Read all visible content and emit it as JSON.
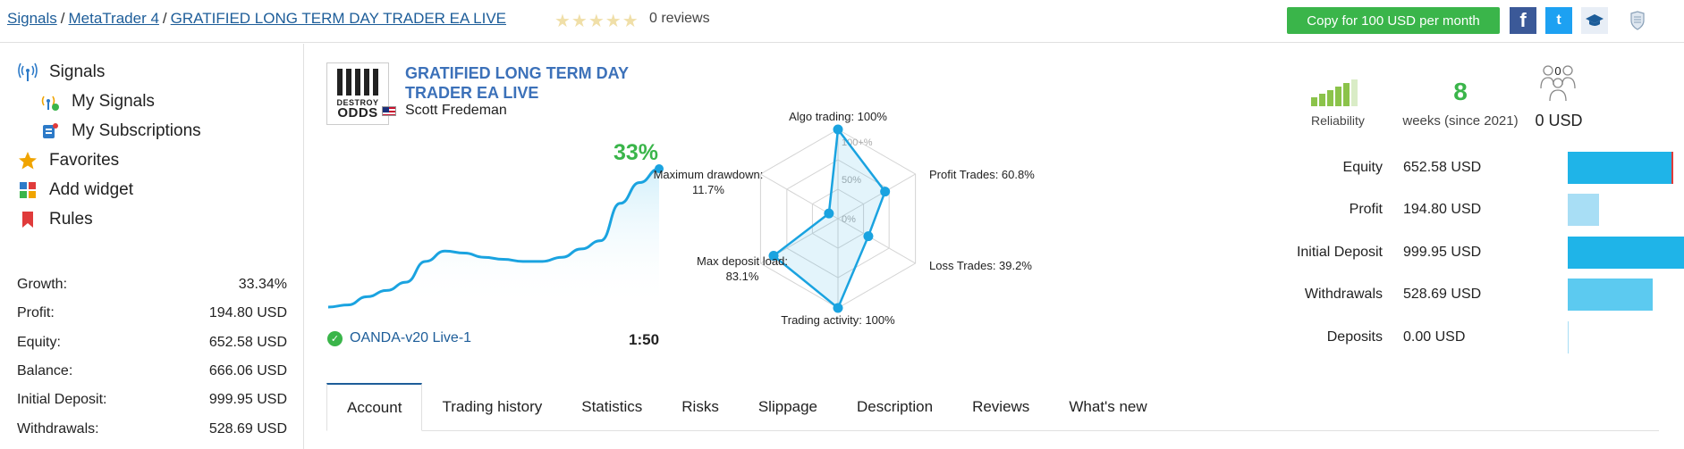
{
  "breadcrumb": {
    "items": [
      "Signals",
      "MetaTrader 4",
      "GRATIFIED LONG TERM DAY TRADER EA LIVE"
    ],
    "sep": "/"
  },
  "rating": {
    "stars": "★★★★★",
    "reviews": "0 reviews"
  },
  "header": {
    "copy_button": "Copy for 100 USD per month",
    "facebook_glyph": "f",
    "twitter_glyph": "t"
  },
  "sidebar": {
    "nav": [
      {
        "label": "Signals",
        "icon": "antenna-icon"
      },
      {
        "label": "My Signals",
        "icon": "my-signals-icon"
      },
      {
        "label": "My Subscriptions",
        "icon": "subscriptions-icon"
      },
      {
        "label": "Favorites",
        "icon": "star-icon"
      },
      {
        "label": "Add widget",
        "icon": "widget-icon"
      },
      {
        "label": "Rules",
        "icon": "bookmark-icon"
      }
    ],
    "stats": [
      {
        "label": "Growth:",
        "value": "33.34%"
      },
      {
        "label": "Profit:",
        "value": "194.80 USD"
      },
      {
        "label": "Equity:",
        "value": "652.58 USD"
      },
      {
        "label": "Balance:",
        "value": "666.06 USD"
      },
      {
        "label": "Initial Deposit:",
        "value": "999.95 USD"
      },
      {
        "label": "Withdrawals:",
        "value": "528.69 USD"
      }
    ]
  },
  "signal": {
    "logo_line1": "DESTROY",
    "logo_line2": "ODDS",
    "title": "GRATIFIED LONG TERM DAY TRADER EA LIVE",
    "author": "Scott Fredeman",
    "growth": "33%",
    "broker": "OANDA-v20 Live-1",
    "broker_check": "✓",
    "leverage": "1:50"
  },
  "radar": {
    "axes": [
      {
        "label": "Algo trading: 100%",
        "value": 100
      },
      {
        "label": "Profit Trades: 60.8%",
        "value": 60.8
      },
      {
        "label": "Loss Trades: 39.2%",
        "value": 39.2
      },
      {
        "label": "Trading activity: 100%",
        "value": 100
      },
      {
        "label": "Max deposit load:",
        "label2": "83.1%",
        "value": 83.1
      },
      {
        "label": "Maximum drawdown:",
        "label2": "11.7%",
        "value": 11.7
      }
    ],
    "rings": [
      "100+%",
      "50%",
      "0%"
    ],
    "color": "#1aa3e0"
  },
  "summary": {
    "reliability_label": "Reliability",
    "weeks": "8",
    "weeks_label": "weeks (since 2021)",
    "subscribers_count": "0",
    "subscribers_usd": "0 USD"
  },
  "equity_rows": [
    {
      "label": "Equity",
      "value": "652.58 USD",
      "fraction": 0.653,
      "color": "#1fb4e8",
      "marker": true
    },
    {
      "label": "Profit",
      "value": "194.80 USD",
      "fraction": 0.195,
      "color": "#a8def5",
      "marker": false
    },
    {
      "label": "Initial Deposit",
      "value": "999.95 USD",
      "fraction": 1.0,
      "color": "#1fb4e8",
      "marker": false
    },
    {
      "label": "Withdrawals",
      "value": "528.69 USD",
      "fraction": 0.529,
      "color": "#5ccaf0",
      "marker": false
    },
    {
      "label": "Deposits",
      "value": "0.00 USD",
      "fraction": 0.0,
      "color": "#a8def5",
      "marker": false
    }
  ],
  "tabs": [
    "Account",
    "Trading history",
    "Statistics",
    "Risks",
    "Slippage",
    "Description",
    "Reviews",
    "What's new"
  ],
  "chart_data": {
    "type": "line",
    "title": "",
    "ylabel": "",
    "xlabel": "",
    "series": [
      {
        "values": [
          0,
          0.5,
          2.5,
          4,
          6,
          11,
          13.5,
          13,
          12,
          11.5,
          11,
          11,
          12,
          14,
          16,
          25,
          30,
          33.34
        ]
      }
    ],
    "ylim": [
      0,
      33.34
    ],
    "grid": false
  }
}
